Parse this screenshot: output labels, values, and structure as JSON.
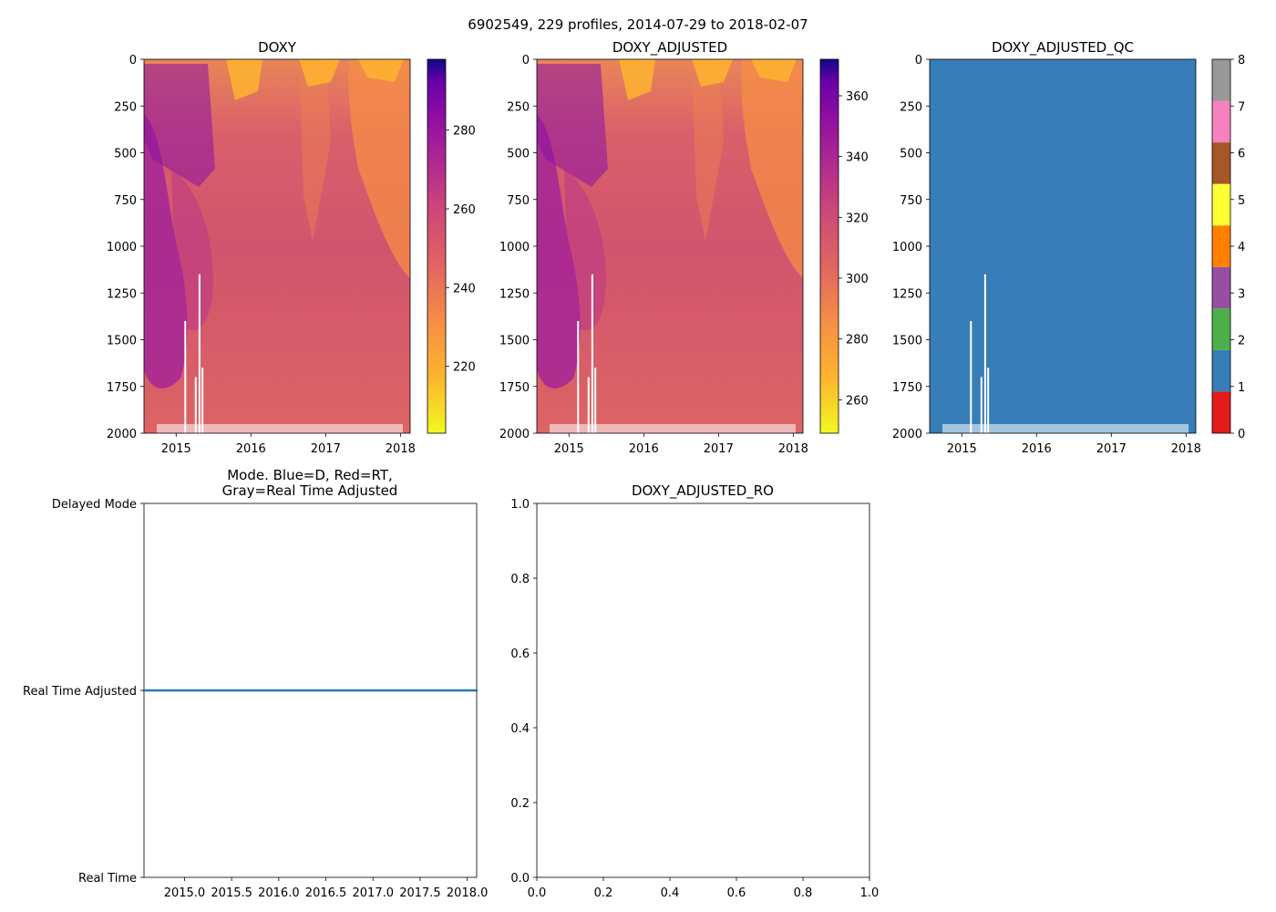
{
  "figure": {
    "suptitle": "6902549, 229 profiles, 2014-07-29 to 2018-02-07"
  },
  "chart_data": [
    {
      "type": "heatmap",
      "title": "DOXY",
      "colormap": "plasma_r",
      "yticks": [
        "0",
        "250",
        "500",
        "750",
        "1000",
        "1250",
        "1500",
        "1750",
        "2000"
      ],
      "ylim": [
        2000,
        0
      ],
      "xticks": [
        "2015",
        "2016",
        "2017",
        "2018"
      ],
      "xlim": [
        2014.57,
        2018.13
      ],
      "colorbar": {
        "range": [
          203,
          298
        ],
        "ticks": [
          "220",
          "240",
          "260",
          "280"
        ]
      },
      "gaps": [
        {
          "x": 2015.11,
          "depth_from": 1400,
          "depth_to": 2000
        },
        {
          "x": 2015.25,
          "depth_from": 1700,
          "depth_to": 2000
        },
        {
          "x": 2015.3,
          "depth_from": 1150,
          "depth_to": 2000
        },
        {
          "x": 2015.34,
          "depth_from": 1650,
          "depth_to": 2000
        }
      ]
    },
    {
      "type": "heatmap",
      "title": "DOXY_ADJUSTED",
      "colormap": "plasma_r",
      "yticks": [
        "0",
        "250",
        "500",
        "750",
        "1000",
        "1250",
        "1500",
        "1750",
        "2000"
      ],
      "ylim": [
        2000,
        0
      ],
      "xticks": [
        "2015",
        "2016",
        "2017",
        "2018"
      ],
      "xlim": [
        2014.57,
        2018.13
      ],
      "colorbar": {
        "range": [
          249,
          372
        ],
        "ticks": [
          "260",
          "280",
          "300",
          "320",
          "340",
          "360"
        ]
      },
      "gaps": [
        {
          "x": 2015.11,
          "depth_from": 1400,
          "depth_to": 2000
        },
        {
          "x": 2015.25,
          "depth_from": 1700,
          "depth_to": 2000
        },
        {
          "x": 2015.3,
          "depth_from": 1150,
          "depth_to": 2000
        },
        {
          "x": 2015.34,
          "depth_from": 1650,
          "depth_to": 2000
        }
      ]
    },
    {
      "type": "heatmap",
      "title": "DOXY_ADJUSTED_QC",
      "fill_value": 1,
      "fill_color": "#377eb8",
      "yticks": [
        "0",
        "250",
        "500",
        "750",
        "1000",
        "1250",
        "1500",
        "1750",
        "2000"
      ],
      "ylim": [
        2000,
        0
      ],
      "xticks": [
        "2015",
        "2016",
        "2017",
        "2018"
      ],
      "xlim": [
        2014.57,
        2018.13
      ],
      "colorbar": {
        "ticks": [
          "0",
          "1",
          "2",
          "3",
          "4",
          "5",
          "6",
          "7",
          "8"
        ],
        "colors": [
          "#e41a1c",
          "#377eb8",
          "#4daf4a",
          "#984ea3",
          "#ff7f00",
          "#ffff33",
          "#a65628",
          "#f781bf",
          "#999999"
        ]
      }
    },
    {
      "type": "scatter",
      "title_line1": "Mode. Blue=D, Red=RT,",
      "title_line2": "Gray=Real Time Adjusted",
      "yticks": [
        "Real Time",
        "Real Time Adjusted",
        "Delayed Mode"
      ],
      "xticks": [
        "2015.0",
        "2015.5",
        "2016.0",
        "2016.5",
        "2017.0",
        "2017.5",
        "2018.0"
      ],
      "xlim": [
        2014.57,
        2018.1
      ],
      "series": [
        {
          "name": "Real Time Adjusted",
          "color": "#1f77b4",
          "level": 1,
          "count": 229,
          "x_range": [
            2014.57,
            2018.1
          ]
        }
      ]
    },
    {
      "type": "scatter",
      "title": "DOXY_ADJUSTED_RO",
      "xlim": [
        0,
        1
      ],
      "ylim": [
        0,
        1
      ],
      "xticks": [
        "0.0",
        "0.2",
        "0.4",
        "0.6",
        "0.8",
        "1.0"
      ],
      "yticks": [
        "0.0",
        "0.2",
        "0.4",
        "0.6",
        "0.8",
        "1.0"
      ],
      "series": []
    }
  ]
}
